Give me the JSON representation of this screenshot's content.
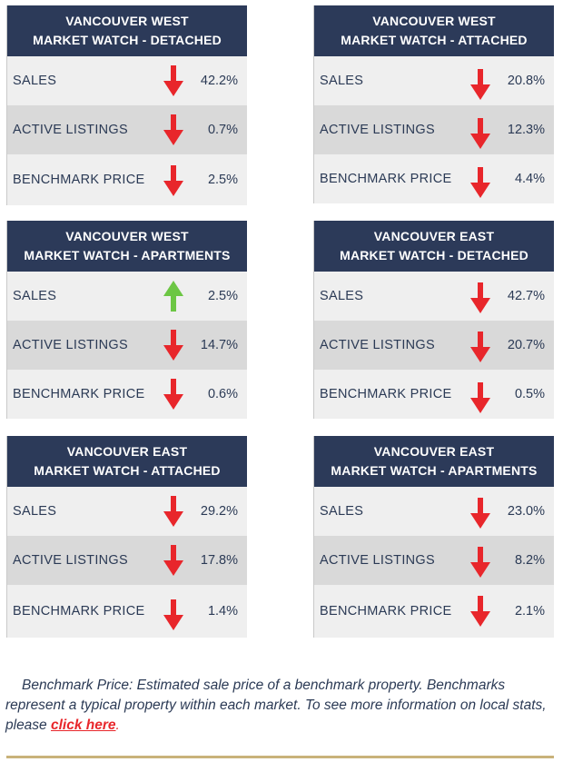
{
  "cards": [
    {
      "title1": "VANCOUVER WEST",
      "title2": "MARKET WATCH - DETACHED",
      "rows": [
        {
          "label": "SALES",
          "value": "42.2%",
          "direction": "down"
        },
        {
          "label": "ACTIVE LISTINGS",
          "value": "0.7%",
          "direction": "down"
        },
        {
          "label": "BENCHMARK PRICE",
          "value": "2.5%",
          "direction": "down"
        }
      ]
    },
    {
      "title1": "VANCOUVER WEST",
      "title2": "MARKET WATCH - ATTACHED",
      "rows": [
        {
          "label": "SALES",
          "value": "20.8%",
          "direction": "down"
        },
        {
          "label": "ACTIVE LISTINGS",
          "value": "12.3%",
          "direction": "down"
        },
        {
          "label": "BENCHMARK PRICE",
          "value": "4.4%",
          "direction": "down"
        }
      ]
    },
    {
      "title1": "VANCOUVER WEST",
      "title2": "MARKET WATCH - APARTMENTS",
      "rows": [
        {
          "label": "SALES",
          "value": "2.5%",
          "direction": "up"
        },
        {
          "label": "ACTIVE LISTINGS",
          "value": "14.7%",
          "direction": "down"
        },
        {
          "label": "BENCHMARK PRICE",
          "value": "0.6%",
          "direction": "down"
        }
      ]
    },
    {
      "title1": "VANCOUVER EAST",
      "title2": "MARKET WATCH - DETACHED",
      "rows": [
        {
          "label": "SALES",
          "value": "42.7%",
          "direction": "down"
        },
        {
          "label": "ACTIVE LISTINGS",
          "value": "20.7%",
          "direction": "down"
        },
        {
          "label": "BENCHMARK PRICE",
          "value": "0.5%",
          "direction": "down"
        }
      ]
    },
    {
      "title1": "VANCOUVER EAST",
      "title2": "MARKET WATCH - ATTACHED",
      "rows": [
        {
          "label": "SALES",
          "value": "29.2%",
          "direction": "down"
        },
        {
          "label": "ACTIVE LISTINGS",
          "value": "17.8%",
          "direction": "down"
        },
        {
          "label": "BENCHMARK PRICE",
          "value": "1.4%",
          "direction": "down"
        }
      ]
    },
    {
      "title1": "VANCOUVER EAST",
      "title2": "MARKET WATCH - APARTMENTS",
      "rows": [
        {
          "label": "SALES",
          "value": "23.0%",
          "direction": "down"
        },
        {
          "label": "ACTIVE LISTINGS",
          "value": "8.2%",
          "direction": "down"
        },
        {
          "label": "BENCHMARK PRICE",
          "value": "2.1%",
          "direction": "down"
        }
      ]
    }
  ],
  "note": {
    "text": "Benchmark Price: Estimated sale price of a benchmark property. Benchmarks represent a typical property within each market. To see more information on local stats, please ",
    "link_label": "click here",
    "trailing": "."
  },
  "colors": {
    "header_bg": "#2c3a59",
    "down_arrow": "#e8262b",
    "up_arrow": "#6cc644",
    "divider": "#c9b27a"
  },
  "icons": {
    "down": "arrow-down-icon",
    "up": "arrow-up-icon"
  }
}
